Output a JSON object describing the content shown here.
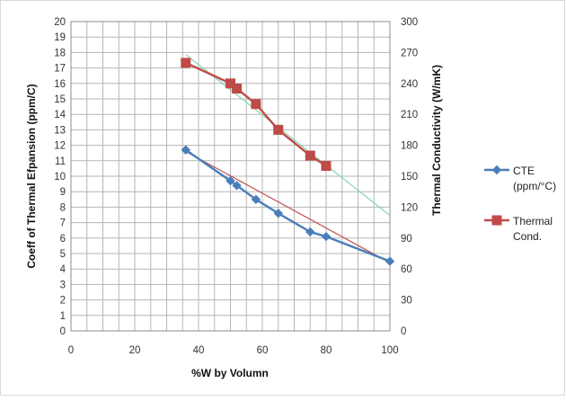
{
  "chart_data": {
    "type": "line",
    "xlabel": "%W by Volumn",
    "ylabel_left": "Coeff of Thermal Efpansion (ppm/C)",
    "ylabel_right": "Thermal Conductivity (W/mK)",
    "xlim": [
      0,
      100
    ],
    "x_ticks": [
      0,
      20,
      40,
      60,
      80,
      100
    ],
    "ylim_left": [
      0,
      20
    ],
    "y_ticks_left": [
      0,
      1,
      2,
      3,
      4,
      5,
      6,
      7,
      8,
      9,
      10,
      11,
      12,
      13,
      14,
      15,
      16,
      17,
      18,
      19,
      20
    ],
    "ylim_right": [
      0,
      300
    ],
    "y_ticks_right": [
      0,
      30,
      60,
      90,
      120,
      150,
      180,
      210,
      240,
      270,
      300
    ],
    "grid": true,
    "legend_position": "right",
    "series": [
      {
        "name": "CTE (ppm/°C)",
        "legend_lines": [
          "CTE",
          "(ppm/°C)"
        ],
        "axis": "left",
        "color": "#4a7ebb",
        "marker": "diamond",
        "x": [
          36,
          50,
          52,
          58,
          65,
          75,
          80,
          100
        ],
        "y": [
          11.7,
          9.7,
          9.4,
          8.5,
          7.6,
          6.4,
          6.1,
          4.5
        ],
        "trendline_color": "#c0504d",
        "trendline": {
          "x": [
            36,
            100
          ],
          "y": [
            11.6,
            4.4
          ]
        }
      },
      {
        "name": "Thermal Cond.",
        "legend_lines": [
          "Thermal",
          "Cond."
        ],
        "axis": "right",
        "color": "#be4b48",
        "marker": "square",
        "x": [
          36,
          50,
          52,
          58,
          65,
          75,
          80
        ],
        "y": [
          260,
          240,
          235,
          220,
          195,
          170,
          160
        ],
        "trendline_color": "#7fd6a8",
        "trendline": {
          "x": [
            36,
            100
          ],
          "y": [
            268,
            112
          ]
        }
      }
    ]
  }
}
